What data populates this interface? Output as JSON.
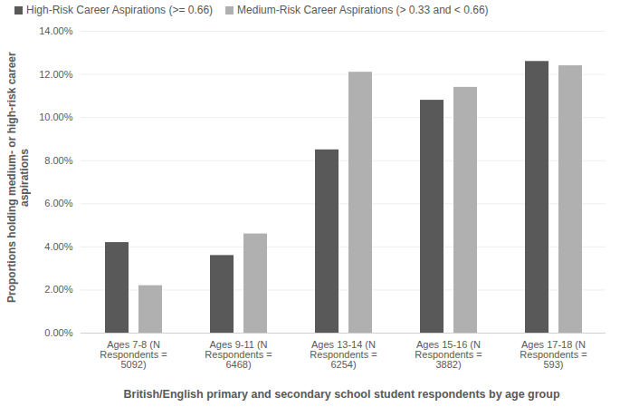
{
  "chart_data": {
    "type": "bar",
    "x_label": "British/English primary and secondary school student respondents by age group",
    "y_label": "Proportions holding medium- or high-risk career aspirations",
    "categories": [
      "Ages 7-8 (N Respondents = 5092)",
      "Ages 9-11 (N Respondents = 6468)",
      "Ages 13-14 (N Respondents = 6254)",
      "Ages 15-16 (N Respondents = 3882)",
      "Ages 17-18 (N Respondents = 593)"
    ],
    "series": [
      {
        "name": "High-Risk Career Aspirations (>= 0.66)",
        "color": "#595959",
        "values": [
          4.2,
          3.6,
          8.5,
          10.8,
          12.6
        ]
      },
      {
        "name": "Medium-Risk Career Aspirations (> 0.33 and < 0.66)",
        "color": "#b0b0b0",
        "values": [
          2.2,
          4.6,
          12.1,
          11.4,
          12.4
        ]
      }
    ],
    "ylim": [
      0,
      14
    ],
    "yticks": [
      {
        "value": 0,
        "label": "0.00%"
      },
      {
        "value": 2,
        "label": "2.00%"
      },
      {
        "value": 4,
        "label": "4.00%"
      },
      {
        "value": 6,
        "label": "6.00%"
      },
      {
        "value": 8,
        "label": "8.00%"
      },
      {
        "value": 10,
        "label": "10.00%"
      },
      {
        "value": 12,
        "label": "12.00%"
      },
      {
        "value": 14,
        "label": "14.00%"
      }
    ],
    "grid": true,
    "legend": "top-left"
  }
}
